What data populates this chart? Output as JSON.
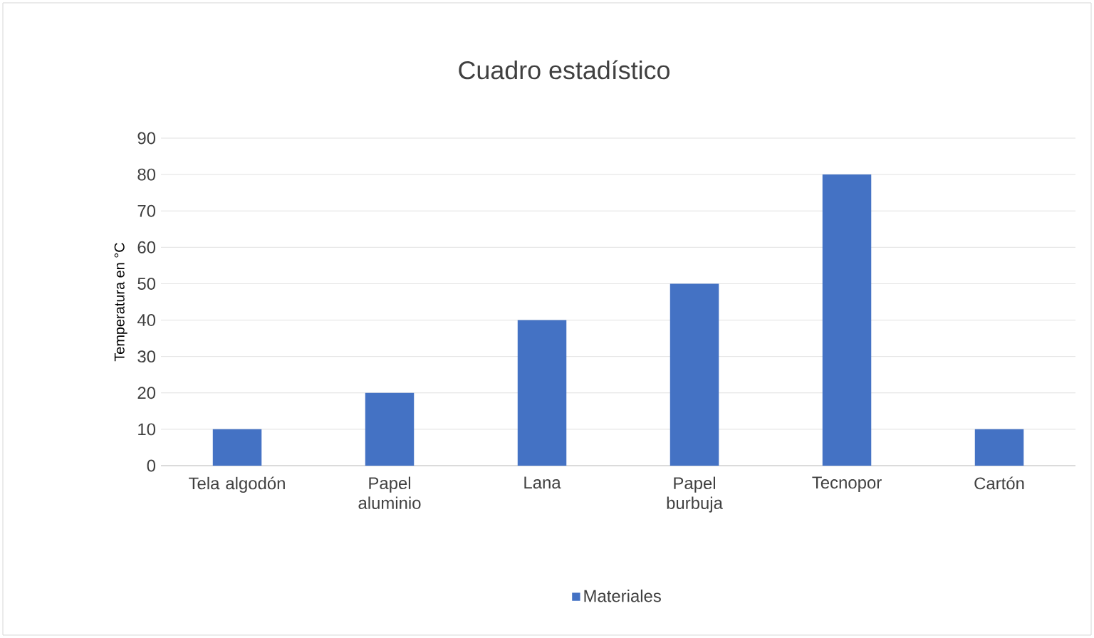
{
  "chart_data": {
    "type": "bar",
    "title": "Cuadro estadístico",
    "ylabel": "Temperatura en °C",
    "categories": [
      "Tela algodón",
      "Papel aluminio",
      "Lana",
      "Papel burbuja",
      "Tecnopor",
      "Cartón"
    ],
    "series": [
      {
        "name": "Materiales",
        "color": "#4472c4",
        "values": [
          10,
          20,
          40,
          50,
          80,
          10
        ]
      }
    ],
    "ylim": [
      0,
      90
    ],
    "yticks": [
      0,
      10,
      20,
      30,
      40,
      50,
      60,
      70,
      80,
      90
    ],
    "grid": "y",
    "legend": "bottom"
  }
}
